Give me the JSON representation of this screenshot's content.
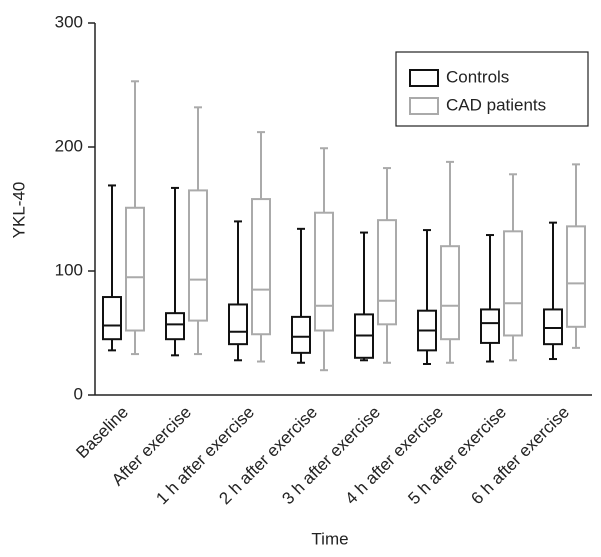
{
  "chart_data": {
    "type": "box",
    "x_label": "Time",
    "y_label": "YKL-40",
    "categories": [
      "Baseline",
      "After exercise",
      "1 h after exercise",
      "2 h after exercise",
      "3 h after exercise",
      "4 h after exercise",
      "5 h after exercise",
      "6 h after exercise"
    ],
    "series": [
      {
        "name": "Controls",
        "color": "#111111",
        "low": [
          36,
          32,
          28,
          26,
          28,
          25,
          27,
          29
        ],
        "q1": [
          45,
          45,
          41,
          34,
          30,
          36,
          42,
          41
        ],
        "median": [
          56,
          57,
          51,
          47,
          48,
          52,
          58,
          54
        ],
        "q3": [
          79,
          66,
          73,
          63,
          65,
          68,
          69,
          69
        ],
        "high": [
          169,
          167,
          140,
          134,
          131,
          133,
          129,
          139
        ]
      },
      {
        "name": "CAD patients",
        "color": "#aaaaaa",
        "low": [
          33,
          33,
          27,
          20,
          26,
          26,
          28,
          38
        ],
        "q1": [
          52,
          60,
          49,
          52,
          57,
          45,
          48,
          55
        ],
        "median": [
          95,
          93,
          85,
          72,
          76,
          72,
          74,
          90
        ],
        "q3": [
          151,
          165,
          158,
          147,
          141,
          120,
          132,
          136
        ],
        "high": [
          253,
          232,
          212,
          199,
          183,
          188,
          178,
          186
        ]
      }
    ],
    "ylim": [
      0,
      300
    ],
    "yticks": [
      0,
      100,
      200,
      300
    ],
    "legend": "upper right"
  }
}
